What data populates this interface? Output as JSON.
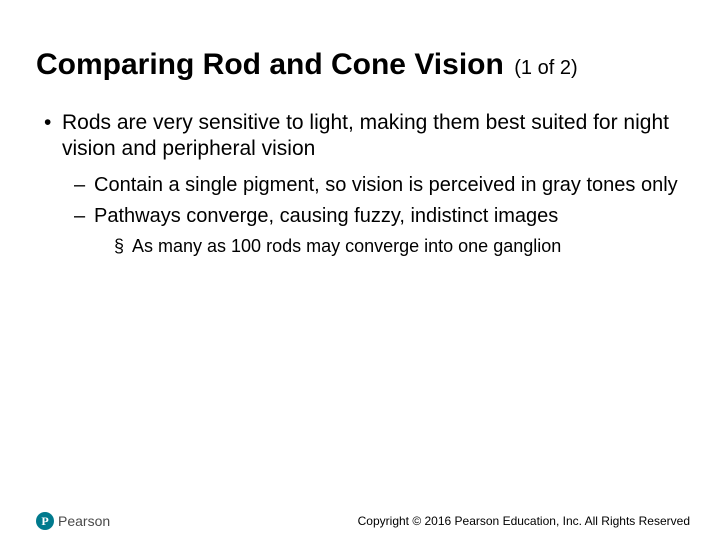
{
  "title": "Comparing Rod and Cone Vision",
  "subtitle": "(1 of 2)",
  "bullets": {
    "l1": "Rods are very sensitive to light, making them best suited for night vision and peripheral vision",
    "l2a": "Contain a single pigment, so vision is perceived in gray tones only",
    "l2b": "Pathways converge, causing fuzzy, indistinct images",
    "l3": "As many as 100 rods may converge into one ganglion"
  },
  "logo": {
    "mark": "P",
    "text": "Pearson"
  },
  "copyright": "Copyright © 2016 Pearson Education, Inc. All Rights Reserved",
  "colors": {
    "brand": "#007a8d",
    "text": "#000000",
    "background": "#ffffff"
  }
}
